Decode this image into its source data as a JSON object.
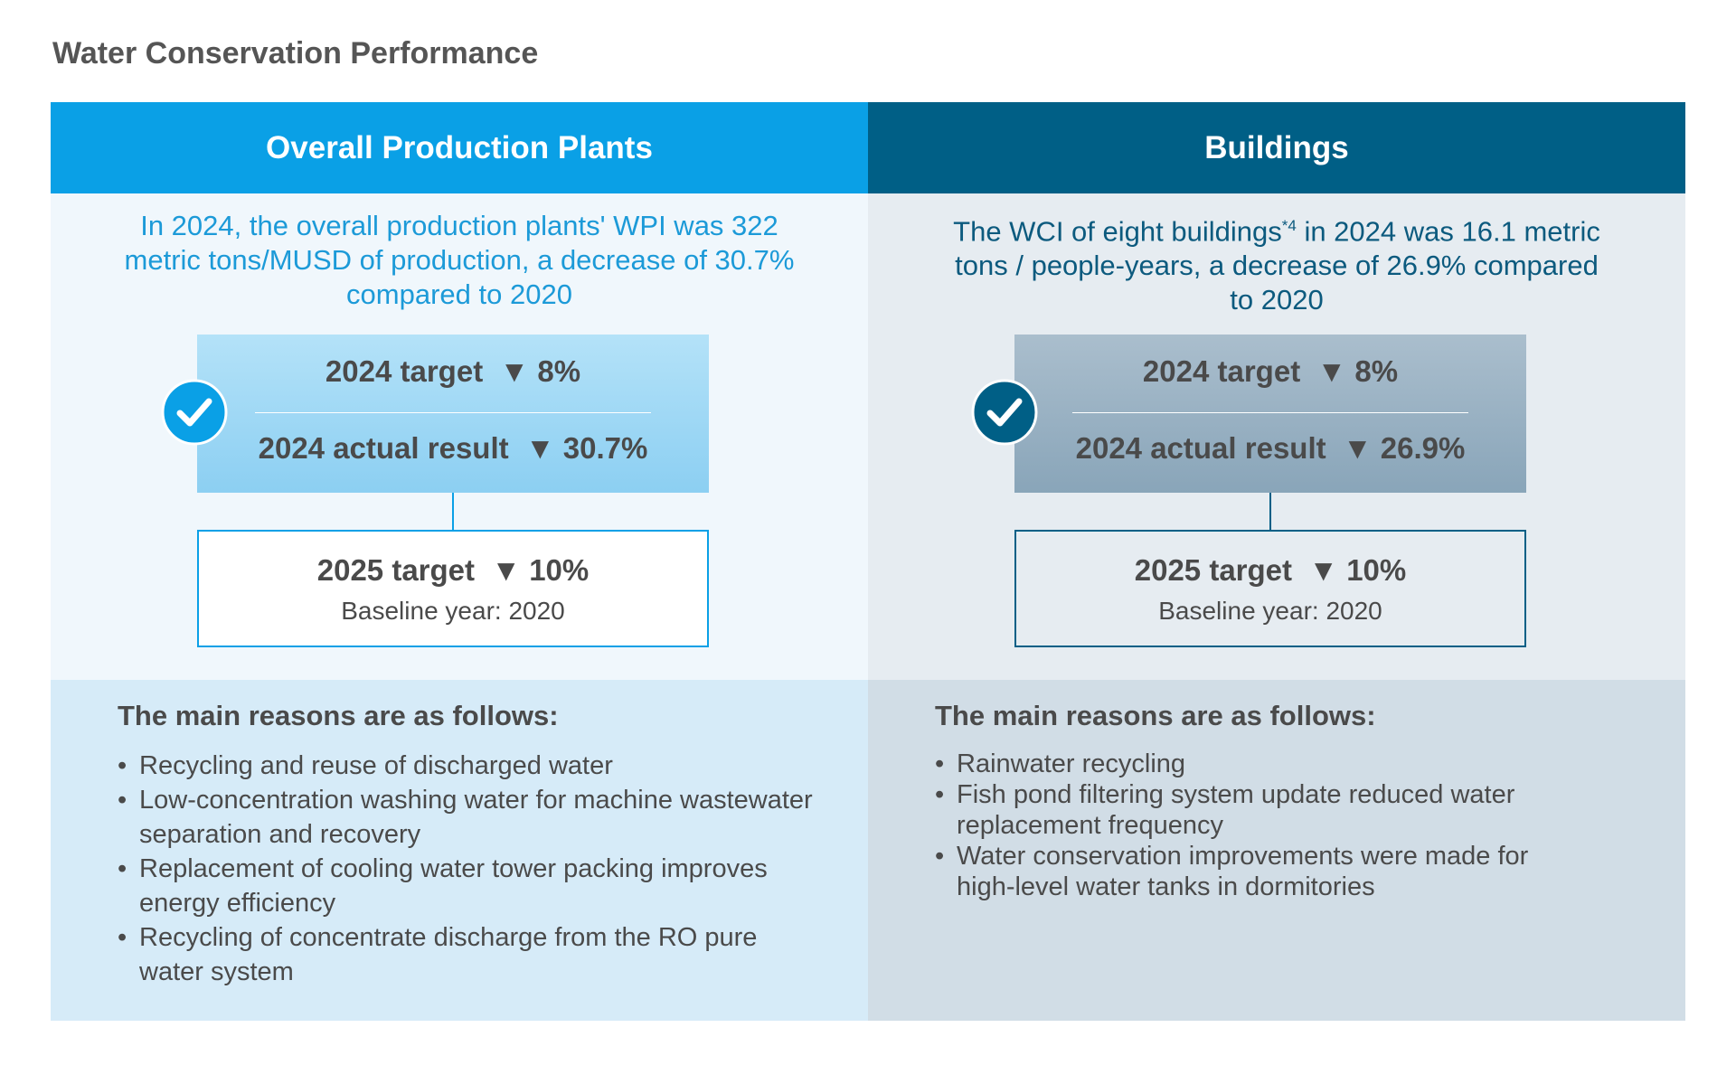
{
  "title": "Water Conservation Performance",
  "columns": [
    {
      "header": "Overall Production Plants",
      "summary": "In 2024, the overall production plants' WPI was 322 metric tons/MUSD of production, a decrease of 30.7% compared to 2020",
      "target_label": "2024 target",
      "target_value": "▼ 8%",
      "actual_label": "2024 actual result",
      "actual_value": "▼ 30.7%",
      "next_label": "2025 target",
      "next_value": "▼ 10%",
      "baseline": "Baseline year: 2020",
      "reasons_title": "The main reasons are as follows:",
      "reasons": [
        "Recycling and reuse of discharged water",
        "Low-concentration washing water for machine wastewater separation and recovery",
        "Replacement of cooling water tower packing improves energy efficiency",
        "Recycling of concentrate discharge from the RO pure water system"
      ]
    },
    {
      "header": "Buildings",
      "summary_lead": "The WCI of eight buildings",
      "footnote": "*4",
      "summary_tail": "in 2024 was 16.1 metric tons / people-years, a decrease of 26.9% compared to 2020",
      "target_label": "2024 target",
      "target_value": "▼ 8%",
      "actual_label": "2024 actual result",
      "actual_value": "▼ 26.9%",
      "next_label": "2025 target",
      "next_value": "▼ 10%",
      "baseline": "Baseline year: 2020",
      "reasons_title": "The main reasons are as follows:",
      "reasons": [
        "Rainwater recycling",
        "Fish pond filtering system update reduced water replacement frequency",
        "Water conservation improvements were made for high-level water tanks in dormitories"
      ]
    }
  ]
}
